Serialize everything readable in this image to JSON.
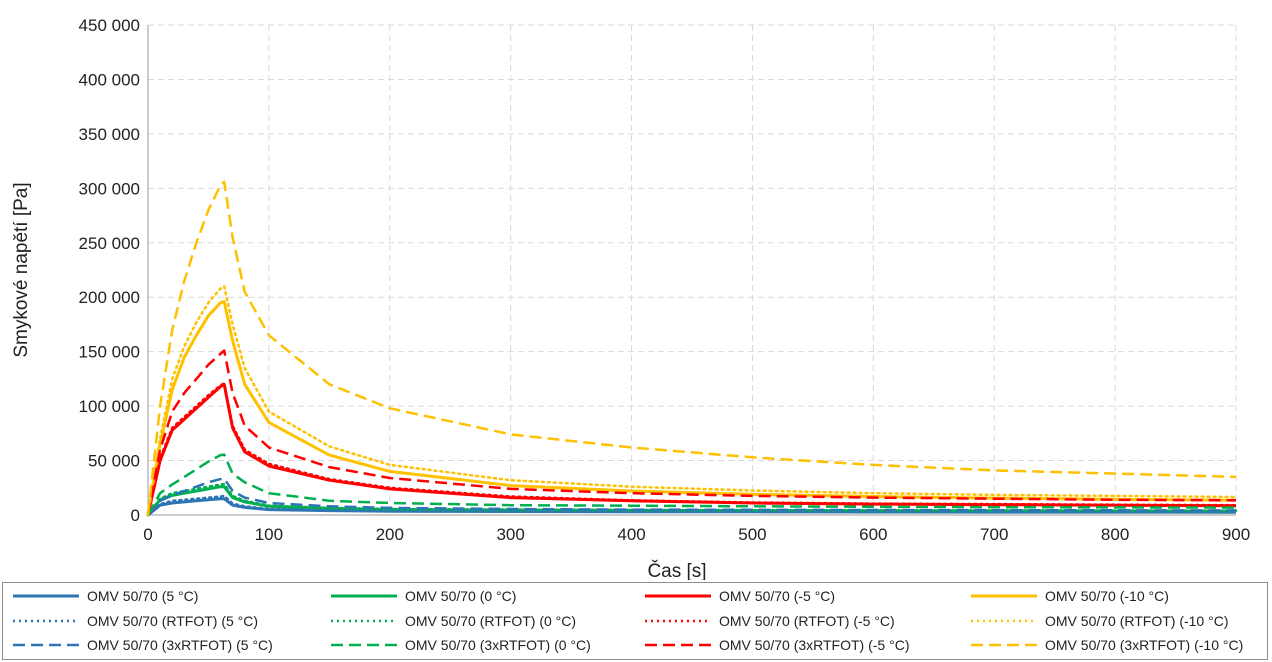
{
  "chart_data": {
    "type": "line",
    "xlabel": "Čas [s]",
    "ylabel": "Smykové napětí [Pa]",
    "xlim": [
      0,
      900
    ],
    "ylim": [
      0,
      450000
    ],
    "x_ticks": [
      0,
      100,
      200,
      300,
      400,
      500,
      600,
      700,
      800,
      900
    ],
    "y_ticks": [
      0,
      50000,
      100000,
      150000,
      200000,
      250000,
      300000,
      350000,
      400000,
      450000
    ],
    "x_tick_labels": [
      "0",
      "100",
      "200",
      "300",
      "400",
      "500",
      "600",
      "700",
      "800",
      "900"
    ],
    "y_tick_labels": [
      "0",
      "50 000",
      "100 000",
      "150 000",
      "200 000",
      "250 000",
      "300 000",
      "350 000",
      "400 000",
      "450 000"
    ],
    "grid": true,
    "legend_position": "bottom",
    "x": [
      0,
      10,
      20,
      30,
      40,
      50,
      60,
      63,
      70,
      80,
      100,
      150,
      200,
      300,
      400,
      500,
      600,
      700,
      800,
      900
    ],
    "series": [
      {
        "name": "OMV 50/70 (5 °C)",
        "color": "#2E75B6",
        "dash": "solid",
        "values": [
          0,
          9000,
          11000,
          12000,
          13000,
          14000,
          15000,
          15000,
          9000,
          7000,
          5000,
          4000,
          3500,
          3200,
          3000,
          2900,
          2800,
          2700,
          2700,
          2600
        ]
      },
      {
        "name": "OMV 50/70 (0 °C)",
        "color": "#00B050",
        "dash": "solid",
        "values": [
          0,
          14000,
          18000,
          20000,
          22000,
          24000,
          26000,
          26000,
          16000,
          12000,
          8000,
          6000,
          5000,
          4500,
          4200,
          4000,
          3900,
          3800,
          3700,
          3600
        ]
      },
      {
        "name": "OMV 50/70 (-5 °C)",
        "color": "#FF0000",
        "dash": "solid",
        "values": [
          0,
          50000,
          78000,
          88000,
          98000,
          108000,
          118000,
          120000,
          80000,
          58000,
          45000,
          32000,
          24000,
          16000,
          13000,
          11000,
          10000,
          9500,
          9000,
          8500
        ]
      },
      {
        "name": "OMV 50/70 (-10 °C)",
        "color": "#FFC000",
        "dash": "solid",
        "values": [
          0,
          65000,
          115000,
          145000,
          165000,
          183000,
          195000,
          196000,
          160000,
          120000,
          85000,
          55000,
          40000,
          27000,
          22000,
          19000,
          17000,
          15500,
          14500,
          13500
        ]
      },
      {
        "name": "OMV 50/70 (RTFOT) (5 °C)",
        "color": "#2E75B6",
        "dash": "dotted",
        "values": [
          0,
          10000,
          13000,
          14000,
          15000,
          16000,
          17000,
          17500,
          10500,
          8000,
          5500,
          4500,
          4000,
          3500,
          3300,
          3200,
          3100,
          3000,
          3000,
          2900
        ]
      },
      {
        "name": "OMV 50/70 (RTFOT) (0 °C)",
        "color": "#00B050",
        "dash": "dotted",
        "values": [
          0,
          15000,
          20000,
          22000,
          24000,
          26000,
          28000,
          28500,
          17500,
          13000,
          8500,
          6500,
          5500,
          5000,
          4600,
          4400,
          4200,
          4100,
          4000,
          3900
        ]
      },
      {
        "name": "OMV 50/70 (RTFOT) (-5 °C)",
        "color": "#FF0000",
        "dash": "dotted",
        "values": [
          0,
          52000,
          80000,
          90000,
          100000,
          110000,
          119000,
          121000,
          82000,
          60000,
          47000,
          33000,
          25000,
          17000,
          13500,
          11500,
          10500,
          10000,
          9500,
          9000
        ]
      },
      {
        "name": "OMV 50/70 (RTFOT) (-10 °C)",
        "color": "#FFC000",
        "dash": "dotted",
        "values": [
          0,
          70000,
          125000,
          155000,
          177000,
          195000,
          208000,
          210000,
          175000,
          135000,
          95000,
          63000,
          46000,
          32000,
          26000,
          22500,
          20000,
          18500,
          17500,
          16500
        ]
      },
      {
        "name": "OMV 50/70 (3xRTFOT) (5 °C)",
        "color": "#2E75B6",
        "dash": "dashed",
        "values": [
          0,
          13000,
          18000,
          22000,
          26000,
          30000,
          33000,
          33500,
          22000,
          16000,
          11000,
          8000,
          6500,
          5500,
          5000,
          4800,
          4600,
          4400,
          4300,
          4200
        ]
      },
      {
        "name": "OMV 50/70 (3xRTFOT) (0 °C)",
        "color": "#00B050",
        "dash": "dashed",
        "values": [
          0,
          20000,
          28000,
          35000,
          42000,
          49000,
          55000,
          55500,
          38000,
          30000,
          20000,
          13000,
          11000,
          9000,
          8500,
          8000,
          7500,
          7200,
          7000,
          6800
        ]
      },
      {
        "name": "OMV 50/70 (3xRTFOT) (-5 °C)",
        "color": "#FF0000",
        "dash": "dashed",
        "values": [
          0,
          60000,
          95000,
          112000,
          125000,
          138000,
          148000,
          151000,
          112000,
          82000,
          62000,
          44000,
          34000,
          24000,
          20000,
          17500,
          16000,
          15000,
          14000,
          13500
        ]
      },
      {
        "name": "OMV 50/70 (3xRTFOT) (-10 °C)",
        "color": "#FFC000",
        "dash": "dashed",
        "values": [
          0,
          100000,
          170000,
          215000,
          250000,
          280000,
          303000,
          306000,
          255000,
          205000,
          165000,
          120000,
          98000,
          74000,
          62000,
          53000,
          46000,
          41000,
          38000,
          35000
        ]
      }
    ]
  }
}
